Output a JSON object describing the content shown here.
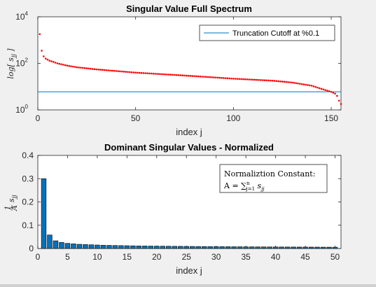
{
  "chart_data": [
    {
      "type": "scatter",
      "title": "Singular Value Full Spectrum",
      "xlabel": "index j",
      "ylabel": "log[ s_jj ]",
      "yscale": "log",
      "xlim": [
        0,
        155
      ],
      "ylim": [
        1,
        10000
      ],
      "xticks": [
        {
          "value": 0,
          "label": "0"
        },
        {
          "value": 50,
          "label": "50"
        },
        {
          "value": 100,
          "label": "100"
        },
        {
          "value": 150,
          "label": "150"
        }
      ],
      "yticks": [
        {
          "value": 1,
          "base": "10",
          "exp": "0"
        },
        {
          "value": 100,
          "base": "10",
          "exp": "2"
        },
        {
          "value": 10000,
          "base": "10",
          "exp": "4"
        }
      ],
      "marker_color": "#ff0000",
      "cutoff": {
        "name": "Truncation Cutoff at %0.1",
        "value": 6.0,
        "color": "#0072bd"
      },
      "legend_position": "top-right",
      "anchors": [
        [
          1,
          1800
        ],
        [
          2,
          350
        ],
        [
          3,
          200
        ],
        [
          4,
          160
        ],
        [
          6,
          130
        ],
        [
          8,
          115
        ],
        [
          10,
          100
        ],
        [
          15,
          80
        ],
        [
          20,
          68
        ],
        [
          30,
          55
        ],
        [
          50,
          40
        ],
        [
          75,
          30
        ],
        [
          100,
          22
        ],
        [
          120,
          18
        ],
        [
          130,
          15
        ],
        [
          140,
          11
        ],
        [
          145,
          8
        ],
        [
          150,
          6
        ],
        [
          152,
          5
        ],
        [
          153,
          4
        ],
        [
          154,
          2.5
        ],
        [
          155,
          1.8
        ]
      ],
      "n_points": 155
    },
    {
      "type": "bar",
      "title": "Dominant Singular Values - Normalized",
      "xlabel": "index j",
      "ylabel": "1/A s_jj",
      "xlim": [
        0,
        51
      ],
      "ylim": [
        0,
        0.4
      ],
      "xticks": [
        0,
        5,
        10,
        15,
        20,
        25,
        30,
        35,
        40,
        45,
        50
      ],
      "yticks": [
        0,
        0.1,
        0.2,
        0.3,
        0.4
      ],
      "bar_color": "#0072bd",
      "x": [
        1,
        2,
        3,
        4,
        5,
        6,
        7,
        8,
        9,
        10,
        11,
        12,
        13,
        14,
        15,
        16,
        17,
        18,
        19,
        20,
        21,
        22,
        23,
        24,
        25,
        26,
        27,
        28,
        29,
        30,
        31,
        32,
        33,
        34,
        35,
        36,
        37,
        38,
        39,
        40,
        41,
        42,
        43,
        44,
        45,
        46,
        47,
        48,
        49,
        50
      ],
      "values": [
        0.3,
        0.058,
        0.033,
        0.026,
        0.022,
        0.02,
        0.018,
        0.017,
        0.016,
        0.015,
        0.014,
        0.0135,
        0.013,
        0.0125,
        0.012,
        0.0115,
        0.011,
        0.0108,
        0.0105,
        0.0102,
        0.01,
        0.0098,
        0.0095,
        0.0093,
        0.0091,
        0.0089,
        0.0087,
        0.0085,
        0.0083,
        0.0081,
        0.0079,
        0.0078,
        0.0076,
        0.0075,
        0.0073,
        0.0072,
        0.0071,
        0.0069,
        0.0068,
        0.0067,
        0.0066,
        0.0065,
        0.0064,
        0.0063,
        0.0062,
        0.0061,
        0.006,
        0.0059,
        0.0058,
        0.0057
      ],
      "annotation": {
        "line1": "Normaliztion Constant:",
        "line2_lhs": "A = ",
        "line2_sum": "∑",
        "line2_sup": "n",
        "line2_sub": "j=1",
        "line2_term": " s",
        "line2_term_sub": "jj"
      }
    }
  ]
}
